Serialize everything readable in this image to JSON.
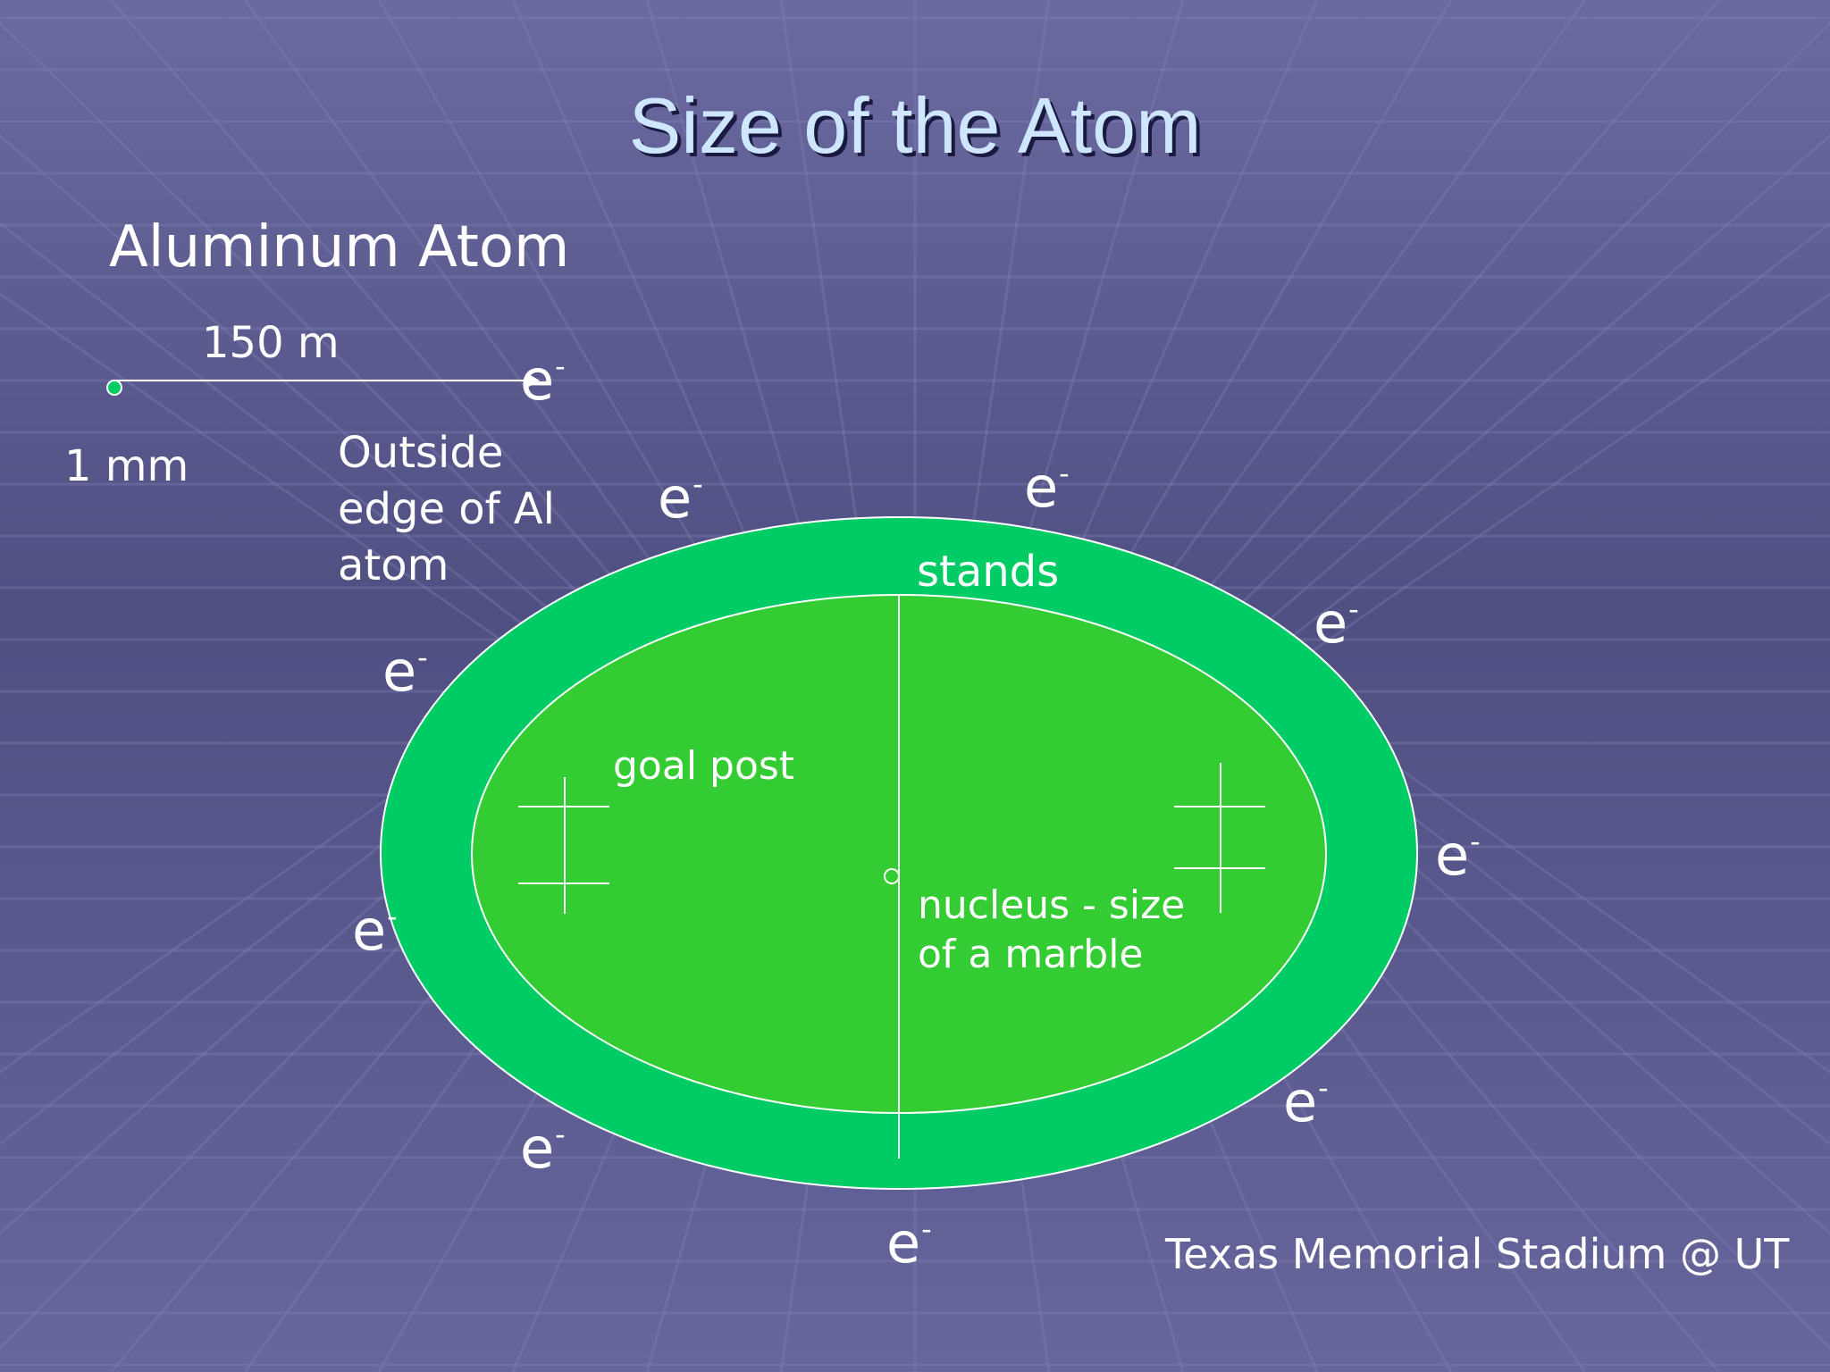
{
  "slide": {
    "title": "Size of the Atom",
    "subtitle": "Aluminum Atom",
    "colors": {
      "background": "#5a5a90",
      "title": "#cfe6ff",
      "stands": "#00cc66",
      "field": "#33cc33",
      "lines": "#ffffff"
    }
  },
  "diagram": {
    "scale_label": "150 m",
    "nucleus_scale_label": "1 mm",
    "edge_label": "Outside\nedge of Al\natom",
    "stands_label": "stands",
    "goal_post_label": "goal post",
    "nucleus_label": "nucleus - size\nof a marble",
    "stadium_caption": "Texas Memorial Stadium @ UT",
    "electron_symbol": "e",
    "electron_charge": "-"
  }
}
